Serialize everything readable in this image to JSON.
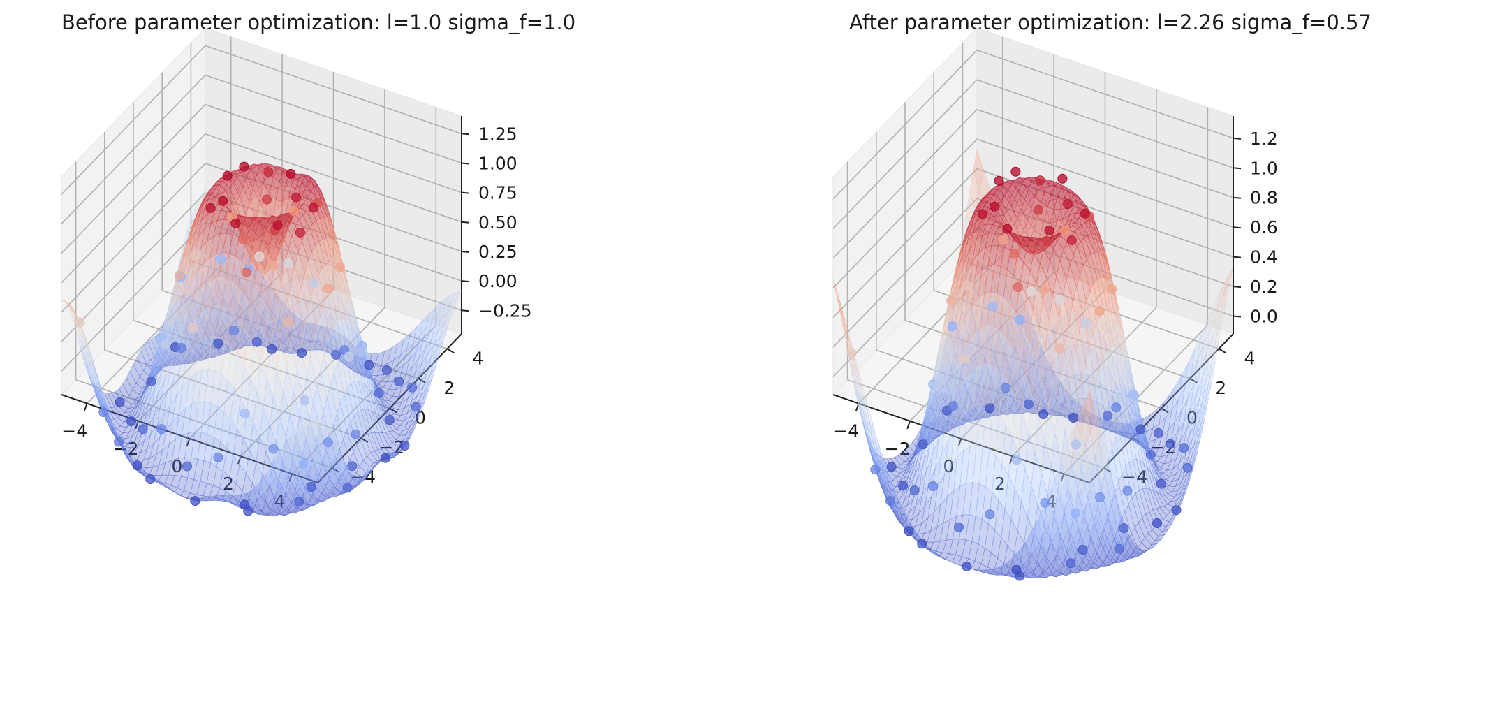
{
  "chart_data": [
    {
      "type": "surface3d",
      "title": "Before parameter optimization: l=1.0 sigma_f=1.0",
      "x_ticks": [
        "−4",
        "−2",
        "0",
        "2",
        "4"
      ],
      "y_ticks": [
        "−4",
        "−2",
        "0",
        "2",
        "4"
      ],
      "z_ticks": [
        "−0.25",
        "0.00",
        "0.25",
        "0.50",
        "0.75",
        "1.00",
        "1.25"
      ],
      "x_range": [
        -5,
        5
      ],
      "y_range": [
        -5,
        5
      ],
      "z_range": [
        -0.45,
        1.4
      ],
      "colormap": "coolwarm",
      "surface": {
        "model": "gp_posterior_mean",
        "length_scale": 1.0,
        "sigma_f": 1.0,
        "resolution": 40
      },
      "points_function": "sin(sqrt(x^2 + y^2))",
      "points": [
        [
          -4.2,
          -3.5
        ],
        [
          -3.8,
          1.2
        ],
        [
          -3.1,
          -4.4
        ],
        [
          -2.7,
          2.9
        ],
        [
          -2.3,
          -1.6
        ],
        [
          -1.9,
          4.1
        ],
        [
          -1.5,
          0.3
        ],
        [
          -1.1,
          -2.8
        ],
        [
          -0.8,
          1.9
        ],
        [
          -0.4,
          -0.6
        ],
        [
          0.2,
          3.3
        ],
        [
          0.5,
          -3.9
        ],
        [
          0.9,
          0.8
        ],
        [
          1.3,
          -1.2
        ],
        [
          1.6,
          2.4
        ],
        [
          2.0,
          -4.5
        ],
        [
          2.3,
          4.6
        ],
        [
          2.7,
          -0.2
        ],
        [
          3.1,
          1.5
        ],
        [
          3.4,
          -2.6
        ],
        [
          3.8,
          3.7
        ],
        [
          4.1,
          -1.0
        ],
        [
          4.5,
          0.6
        ],
        [
          -4.6,
          2.2
        ],
        [
          -3.4,
          -0.9
        ],
        [
          -2.0,
          -3.4
        ],
        [
          -0.9,
          4.4
        ],
        [
          0.0,
          -1.8
        ],
        [
          1.1,
          3.8
        ],
        [
          2.5,
          1.0
        ],
        [
          3.6,
          -3.8
        ],
        [
          4.4,
          2.9
        ],
        [
          -4.0,
          4.3
        ],
        [
          -2.9,
          0.6
        ],
        [
          -1.7,
          -4.7
        ],
        [
          -0.2,
          2.6
        ],
        [
          0.7,
          -2.3
        ],
        [
          1.9,
          -0.7
        ],
        [
          2.9,
          3.0
        ],
        [
          4.0,
          -4.2
        ],
        [
          -4.8,
          -1.3
        ],
        [
          -3.6,
          3.4
        ],
        [
          -2.5,
          -2.2
        ],
        [
          -1.3,
          1.1
        ],
        [
          -0.6,
          -4.1
        ],
        [
          0.4,
          0.1
        ],
        [
          1.5,
          4.8
        ],
        [
          2.2,
          -3.1
        ],
        [
          3.3,
          0.2
        ],
        [
          4.7,
          -2.4
        ],
        [
          -4.3,
          0.0
        ],
        [
          -3.2,
          4.8
        ],
        [
          -2.1,
          1.7
        ],
        [
          -1.0,
          -0.9
        ],
        [
          0.1,
          -4.8
        ],
        [
          1.0,
          2.1
        ],
        [
          2.1,
          -1.9
        ],
        [
          3.0,
          4.2
        ],
        [
          3.9,
          -0.4
        ],
        [
          4.8,
          1.4
        ],
        [
          -4.5,
          -4.6
        ],
        [
          -3.0,
          -2.9
        ],
        [
          -1.6,
          2.7
        ],
        [
          -0.3,
          0.9
        ],
        [
          0.8,
          -0.5
        ],
        [
          1.8,
          0.4
        ],
        [
          2.8,
          -2.0
        ],
        [
          3.7,
          2.3
        ],
        [
          -2.2,
          3.6
        ],
        [
          -1.2,
          -1.4
        ],
        [
          0.3,
          1.5
        ],
        [
          1.2,
          -3.3
        ],
        [
          2.4,
          2.7
        ],
        [
          3.5,
          -1.6
        ],
        [
          -4.9,
          3.1
        ],
        [
          -3.9,
          -2.1
        ],
        [
          -2.6,
          -4.0
        ],
        [
          -0.7,
          3.1
        ],
        [
          0.6,
          4.1
        ],
        [
          1.7,
          -4.2
        ]
      ]
    },
    {
      "type": "surface3d",
      "title": "After parameter optimization: l=2.26 sigma_f=0.57",
      "x_ticks": [
        "−4",
        "−2",
        "0",
        "2",
        "4"
      ],
      "y_ticks": [
        "−4",
        "−2",
        "0",
        "2",
        "4"
      ],
      "z_ticks": [
        "0.0",
        "0.2",
        "0.4",
        "0.6",
        "0.8",
        "1.0",
        "1.2"
      ],
      "x_range": [
        -5,
        5
      ],
      "y_range": [
        -5,
        5
      ],
      "z_range": [
        -0.12,
        1.35
      ],
      "colormap": "coolwarm",
      "surface": {
        "model": "gp_posterior_mean",
        "length_scale": 2.26,
        "sigma_f": 0.57,
        "resolution": 40
      },
      "points_function": "sin(sqrt(x^2 + y^2))",
      "points": [
        [
          -4.2,
          -3.5
        ],
        [
          -3.8,
          1.2
        ],
        [
          -3.1,
          -4.4
        ],
        [
          -2.7,
          2.9
        ],
        [
          -2.3,
          -1.6
        ],
        [
          -1.9,
          4.1
        ],
        [
          -1.5,
          0.3
        ],
        [
          -1.1,
          -2.8
        ],
        [
          -0.8,
          1.9
        ],
        [
          -0.4,
          -0.6
        ],
        [
          0.2,
          3.3
        ],
        [
          0.5,
          -3.9
        ],
        [
          0.9,
          0.8
        ],
        [
          1.3,
          -1.2
        ],
        [
          1.6,
          2.4
        ],
        [
          2.0,
          -4.5
        ],
        [
          2.3,
          4.6
        ],
        [
          2.7,
          -0.2
        ],
        [
          3.1,
          1.5
        ],
        [
          3.4,
          -2.6
        ],
        [
          3.8,
          3.7
        ],
        [
          4.1,
          -1.0
        ],
        [
          4.5,
          0.6
        ],
        [
          -4.6,
          2.2
        ],
        [
          -3.4,
          -0.9
        ],
        [
          -2.0,
          -3.4
        ],
        [
          -0.9,
          4.4
        ],
        [
          0.0,
          -1.8
        ],
        [
          1.1,
          3.8
        ],
        [
          2.5,
          1.0
        ],
        [
          3.6,
          -3.8
        ],
        [
          4.4,
          2.9
        ],
        [
          -4.0,
          4.3
        ],
        [
          -2.9,
          0.6
        ],
        [
          -1.7,
          -4.7
        ],
        [
          -0.2,
          2.6
        ],
        [
          0.7,
          -2.3
        ],
        [
          1.9,
          -0.7
        ],
        [
          2.9,
          3.0
        ],
        [
          4.0,
          -4.2
        ],
        [
          -4.8,
          -1.3
        ],
        [
          -3.6,
          3.4
        ],
        [
          -2.5,
          -2.2
        ],
        [
          -1.3,
          1.1
        ],
        [
          -0.6,
          -4.1
        ],
        [
          0.4,
          0.1
        ],
        [
          1.5,
          4.8
        ],
        [
          2.2,
          -3.1
        ],
        [
          3.3,
          0.2
        ],
        [
          4.7,
          -2.4
        ],
        [
          -4.3,
          0.0
        ],
        [
          -3.2,
          4.8
        ],
        [
          -2.1,
          1.7
        ],
        [
          -1.0,
          -0.9
        ],
        [
          0.1,
          -4.8
        ],
        [
          1.0,
          2.1
        ],
        [
          2.1,
          -1.9
        ],
        [
          3.0,
          4.2
        ],
        [
          3.9,
          -0.4
        ],
        [
          4.8,
          1.4
        ],
        [
          -4.5,
          -4.6
        ],
        [
          -3.0,
          -2.9
        ],
        [
          -1.6,
          2.7
        ],
        [
          -0.3,
          0.9
        ],
        [
          0.8,
          -0.5
        ],
        [
          1.8,
          0.4
        ],
        [
          2.8,
          -2.0
        ],
        [
          3.7,
          2.3
        ],
        [
          -2.2,
          3.6
        ],
        [
          -1.2,
          -1.4
        ],
        [
          0.3,
          1.5
        ],
        [
          1.2,
          -3.3
        ],
        [
          2.4,
          2.7
        ],
        [
          3.5,
          -1.6
        ],
        [
          -4.9,
          3.1
        ],
        [
          -3.9,
          -2.1
        ],
        [
          -2.6,
          -4.0
        ],
        [
          -0.7,
          3.1
        ],
        [
          0.6,
          4.1
        ],
        [
          1.7,
          -4.2
        ]
      ]
    }
  ]
}
